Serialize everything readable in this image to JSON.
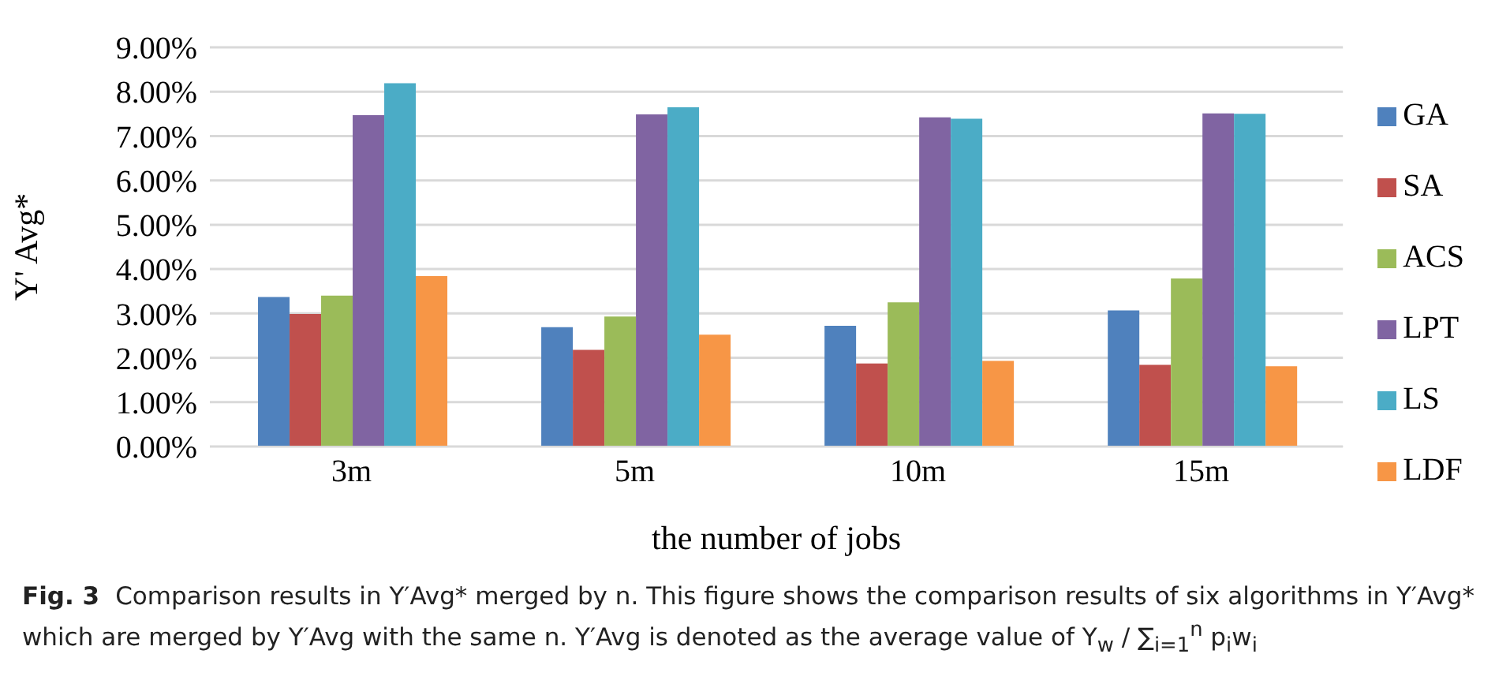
{
  "chart_data": {
    "type": "bar",
    "xlabel": "the number of jobs",
    "ylabel": "Y' Avg*",
    "categories": [
      "3m",
      "5m",
      "10m",
      "15m"
    ],
    "series": [
      {
        "name": "GA",
        "color": "#4f81bd",
        "values": [
          3.37,
          2.69,
          2.72,
          3.07
        ]
      },
      {
        "name": "SA",
        "color": "#c0504d",
        "values": [
          2.99,
          2.18,
          1.87,
          1.84
        ]
      },
      {
        "name": "ACS",
        "color": "#9bbb59",
        "values": [
          3.4,
          2.93,
          3.25,
          3.79
        ]
      },
      {
        "name": "LPT",
        "color": "#8064a2",
        "values": [
          7.47,
          7.49,
          7.42,
          7.51
        ]
      },
      {
        "name": "LS",
        "color": "#4bacc6",
        "values": [
          8.19,
          7.65,
          7.39,
          7.5
        ]
      },
      {
        "name": "LDF",
        "color": "#f79646",
        "values": [
          3.84,
          2.52,
          1.93,
          1.81
        ]
      }
    ],
    "ylim": [
      0,
      9
    ],
    "yticks": [
      {
        "value": 0,
        "label": "0.00%"
      },
      {
        "value": 1,
        "label": "1.00%"
      },
      {
        "value": 2,
        "label": "2.00%"
      },
      {
        "value": 3,
        "label": "3.00%"
      },
      {
        "value": 4,
        "label": "4.00%"
      },
      {
        "value": 5,
        "label": "5.00%"
      },
      {
        "value": 6,
        "label": "6.00%"
      },
      {
        "value": 7,
        "label": "7.00%"
      },
      {
        "value": 8,
        "label": "8.00%"
      },
      {
        "value": 9,
        "label": "9.00%"
      }
    ],
    "grid": "y",
    "legend": "right",
    "annotations": [
      "Fig. 3",
      "Comparison results in Y′Avg* merged by n. This figure shows the comparison results of six algorithms in Y′Avg* which are merged by Y′Avg with the same n. Y′Avg is denoted as the average value of Y$_{w}$ / ∑$_{i=1}$$^{n}$ p$_{i}$w$_{i}$"
    ]
  }
}
